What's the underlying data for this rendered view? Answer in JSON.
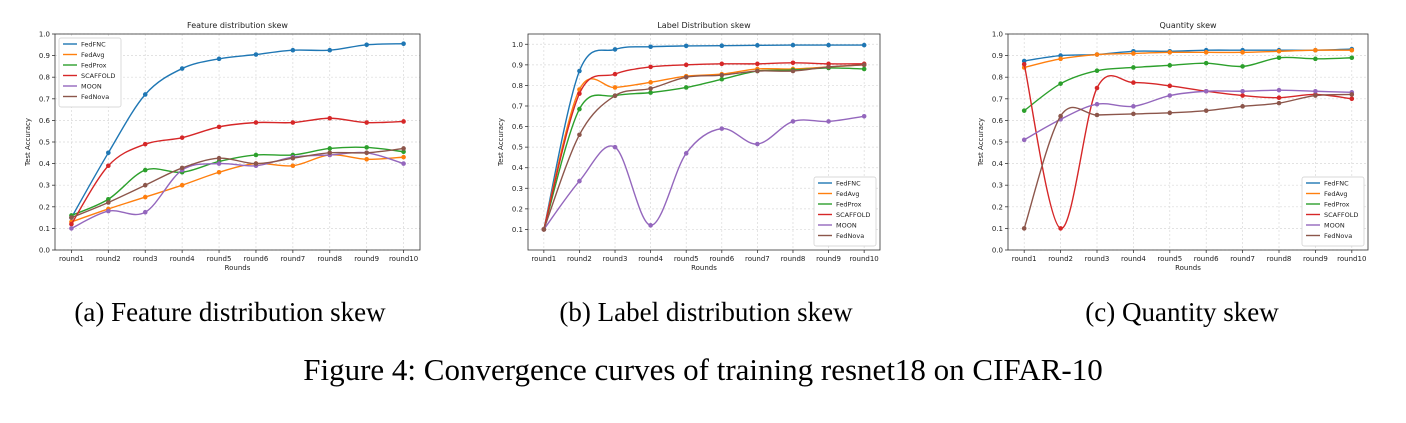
{
  "figure_caption": "Figure 4: Convergence curves of training resnet18 on CIFAR-10",
  "panel_captions": [
    "(a) Feature distribution skew",
    "(b) Label distribution skew",
    "(c) Quantity skew"
  ],
  "colors": {
    "FedFNC": "#1f77b4",
    "FedAvg": "#ff7f0e",
    "FedProx": "#2ca02c",
    "SCAFFOLD": "#d62728",
    "MOON": "#9467bd",
    "FedNova": "#8c564b"
  },
  "chart_data": [
    {
      "type": "line",
      "title": "Feature distribution skew",
      "xlabel": "Rounds",
      "ylabel": "Test Accuracy",
      "categories": [
        "round1",
        "round2",
        "round3",
        "round4",
        "round5",
        "round6",
        "round7",
        "round8",
        "round9",
        "round10"
      ],
      "ylim": [
        0,
        1.0
      ],
      "yticks": [
        "0.0",
        "0.1",
        "0.2",
        "0.3",
        "0.4",
        "0.5",
        "0.6",
        "0.7",
        "0.8",
        "0.9",
        "1.0"
      ],
      "grid": true,
      "legend_position": "top-left",
      "series": [
        {
          "name": "FedFNC",
          "values": [
            0.15,
            0.45,
            0.72,
            0.84,
            0.885,
            0.905,
            0.925,
            0.925,
            0.95,
            0.955
          ]
        },
        {
          "name": "FedAvg",
          "values": [
            0.13,
            0.19,
            0.245,
            0.3,
            0.36,
            0.4,
            0.39,
            0.44,
            0.42,
            0.43
          ]
        },
        {
          "name": "FedProx",
          "values": [
            0.16,
            0.235,
            0.37,
            0.36,
            0.41,
            0.44,
            0.44,
            0.47,
            0.475,
            0.455
          ]
        },
        {
          "name": "SCAFFOLD",
          "values": [
            0.12,
            0.39,
            0.49,
            0.52,
            0.57,
            0.59,
            0.59,
            0.61,
            0.59,
            0.595
          ]
        },
        {
          "name": "MOON",
          "values": [
            0.1,
            0.18,
            0.175,
            0.37,
            0.4,
            0.39,
            0.43,
            0.44,
            0.45,
            0.4
          ]
        },
        {
          "name": "FedNova",
          "values": [
            0.15,
            0.22,
            0.3,
            0.38,
            0.425,
            0.4,
            0.425,
            0.45,
            0.45,
            0.47
          ]
        }
      ]
    },
    {
      "type": "line",
      "title": "Label Distribution skew",
      "xlabel": "Rounds",
      "ylabel": "Test Accuracy",
      "categories": [
        "round1",
        "round2",
        "round3",
        "round4",
        "round5",
        "round6",
        "round7",
        "round8",
        "round9",
        "round10"
      ],
      "ylim": [
        0.0,
        1.05
      ],
      "yticks": [
        "0.1",
        "0.2",
        "0.3",
        "0.4",
        "0.5",
        "0.6",
        "0.7",
        "0.8",
        "0.9",
        "1.0"
      ],
      "grid": true,
      "legend_position": "bottom-right",
      "series": [
        {
          "name": "FedFNC",
          "values": [
            0.1,
            0.87,
            0.975,
            0.988,
            0.992,
            0.993,
            0.995,
            0.996,
            0.996,
            0.996
          ]
        },
        {
          "name": "FedAvg",
          "values": [
            0.1,
            0.78,
            0.79,
            0.815,
            0.845,
            0.855,
            0.88,
            0.88,
            0.89,
            0.9
          ]
        },
        {
          "name": "FedProx",
          "values": [
            0.1,
            0.685,
            0.75,
            0.765,
            0.79,
            0.83,
            0.87,
            0.875,
            0.885,
            0.88
          ]
        },
        {
          "name": "SCAFFOLD",
          "values": [
            0.1,
            0.76,
            0.855,
            0.89,
            0.9,
            0.905,
            0.905,
            0.91,
            0.905,
            0.905
          ]
        },
        {
          "name": "MOON",
          "values": [
            0.1,
            0.335,
            0.5,
            0.12,
            0.47,
            0.59,
            0.515,
            0.625,
            0.625,
            0.65
          ]
        },
        {
          "name": "FedNova",
          "values": [
            0.1,
            0.56,
            0.75,
            0.785,
            0.84,
            0.85,
            0.87,
            0.87,
            0.89,
            0.9
          ]
        }
      ]
    },
    {
      "type": "line",
      "title": "Quantity skew",
      "xlabel": "Rounds",
      "ylabel": "Test Accuracy",
      "categories": [
        "round1",
        "round2",
        "round3",
        "round4",
        "round5",
        "round6",
        "round7",
        "round8",
        "round9",
        "round10"
      ],
      "ylim": [
        0,
        1.0
      ],
      "yticks": [
        "0.0",
        "0.1",
        "0.2",
        "0.3",
        "0.4",
        "0.5",
        "0.6",
        "0.7",
        "0.8",
        "0.9",
        "1.0"
      ],
      "grid": true,
      "legend_position": "bottom-right",
      "series": [
        {
          "name": "FedFNC",
          "values": [
            0.875,
            0.9,
            0.905,
            0.92,
            0.92,
            0.925,
            0.925,
            0.925,
            0.925,
            0.93
          ]
        },
        {
          "name": "FedAvg",
          "values": [
            0.845,
            0.885,
            0.905,
            0.91,
            0.915,
            0.915,
            0.915,
            0.92,
            0.925,
            0.925
          ]
        },
        {
          "name": "FedProx",
          "values": [
            0.645,
            0.77,
            0.83,
            0.845,
            0.855,
            0.865,
            0.85,
            0.89,
            0.885,
            0.89
          ]
        },
        {
          "name": "SCAFFOLD",
          "values": [
            0.86,
            0.1,
            0.75,
            0.775,
            0.76,
            0.735,
            0.715,
            0.705,
            0.72,
            0.7
          ]
        },
        {
          "name": "MOON",
          "values": [
            0.51,
            0.605,
            0.675,
            0.665,
            0.715,
            0.735,
            0.735,
            0.74,
            0.735,
            0.73
          ]
        },
        {
          "name": "FedNova",
          "values": [
            0.1,
            0.62,
            0.625,
            0.63,
            0.635,
            0.645,
            0.665,
            0.68,
            0.715,
            0.72
          ]
        }
      ]
    }
  ]
}
